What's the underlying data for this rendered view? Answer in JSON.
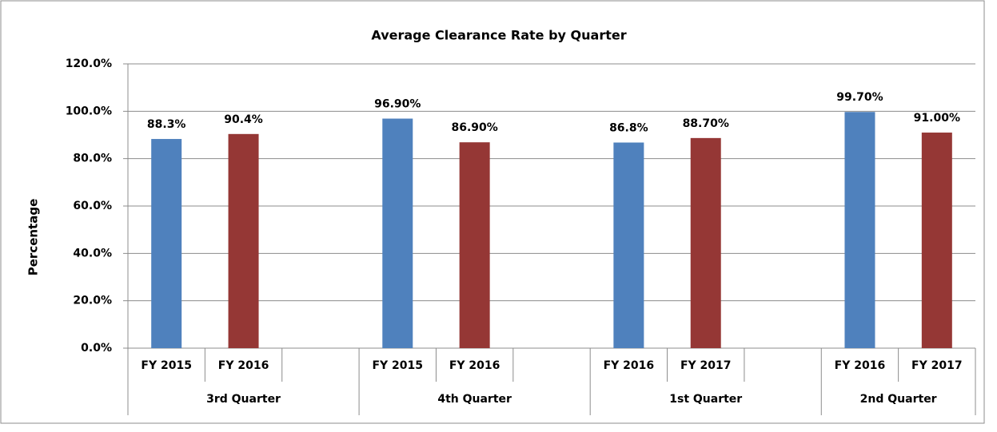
{
  "chart_data": {
    "type": "bar",
    "title": "Average Clearance Rate by Quarter",
    "y_label": "Percentage",
    "colors": [
      "#4f81bd",
      "#953735"
    ],
    "groups": [
      {
        "name": "3rd Quarter",
        "categories": [
          "FY 2015",
          "FY 2016"
        ],
        "values": [
          88.3,
          90.4
        ],
        "value_labels": [
          "88.3%",
          "90.4%"
        ]
      },
      {
        "name": "4th Quarter",
        "categories": [
          "FY 2015",
          "FY 2016"
        ],
        "values": [
          96.9,
          86.9
        ],
        "value_labels": [
          "96.90%",
          "86.90%"
        ]
      },
      {
        "name": "1st Quarter",
        "categories": [
          "FY 2016",
          "FY 2017"
        ],
        "values": [
          86.8,
          88.7
        ],
        "value_labels": [
          "86.8%",
          "88.70%"
        ]
      },
      {
        "name": "2nd Quarter",
        "categories": [
          "FY 2016",
          "FY 2017"
        ],
        "values": [
          99.7,
          91.0
        ],
        "value_labels": [
          "99.70%",
          "91.00%"
        ]
      }
    ],
    "ylim": [
      0,
      120
    ],
    "yticks": [
      {
        "value": 0,
        "label": "0.0%"
      },
      {
        "value": 20,
        "label": "20.0%"
      },
      {
        "value": 40,
        "label": "40.0%"
      },
      {
        "value": 60,
        "label": "60.0%"
      },
      {
        "value": 80,
        "label": "80.0%"
      },
      {
        "value": 100,
        "label": "100.0%"
      },
      {
        "value": 120,
        "label": "120.0%"
      }
    ],
    "grid": true
  }
}
